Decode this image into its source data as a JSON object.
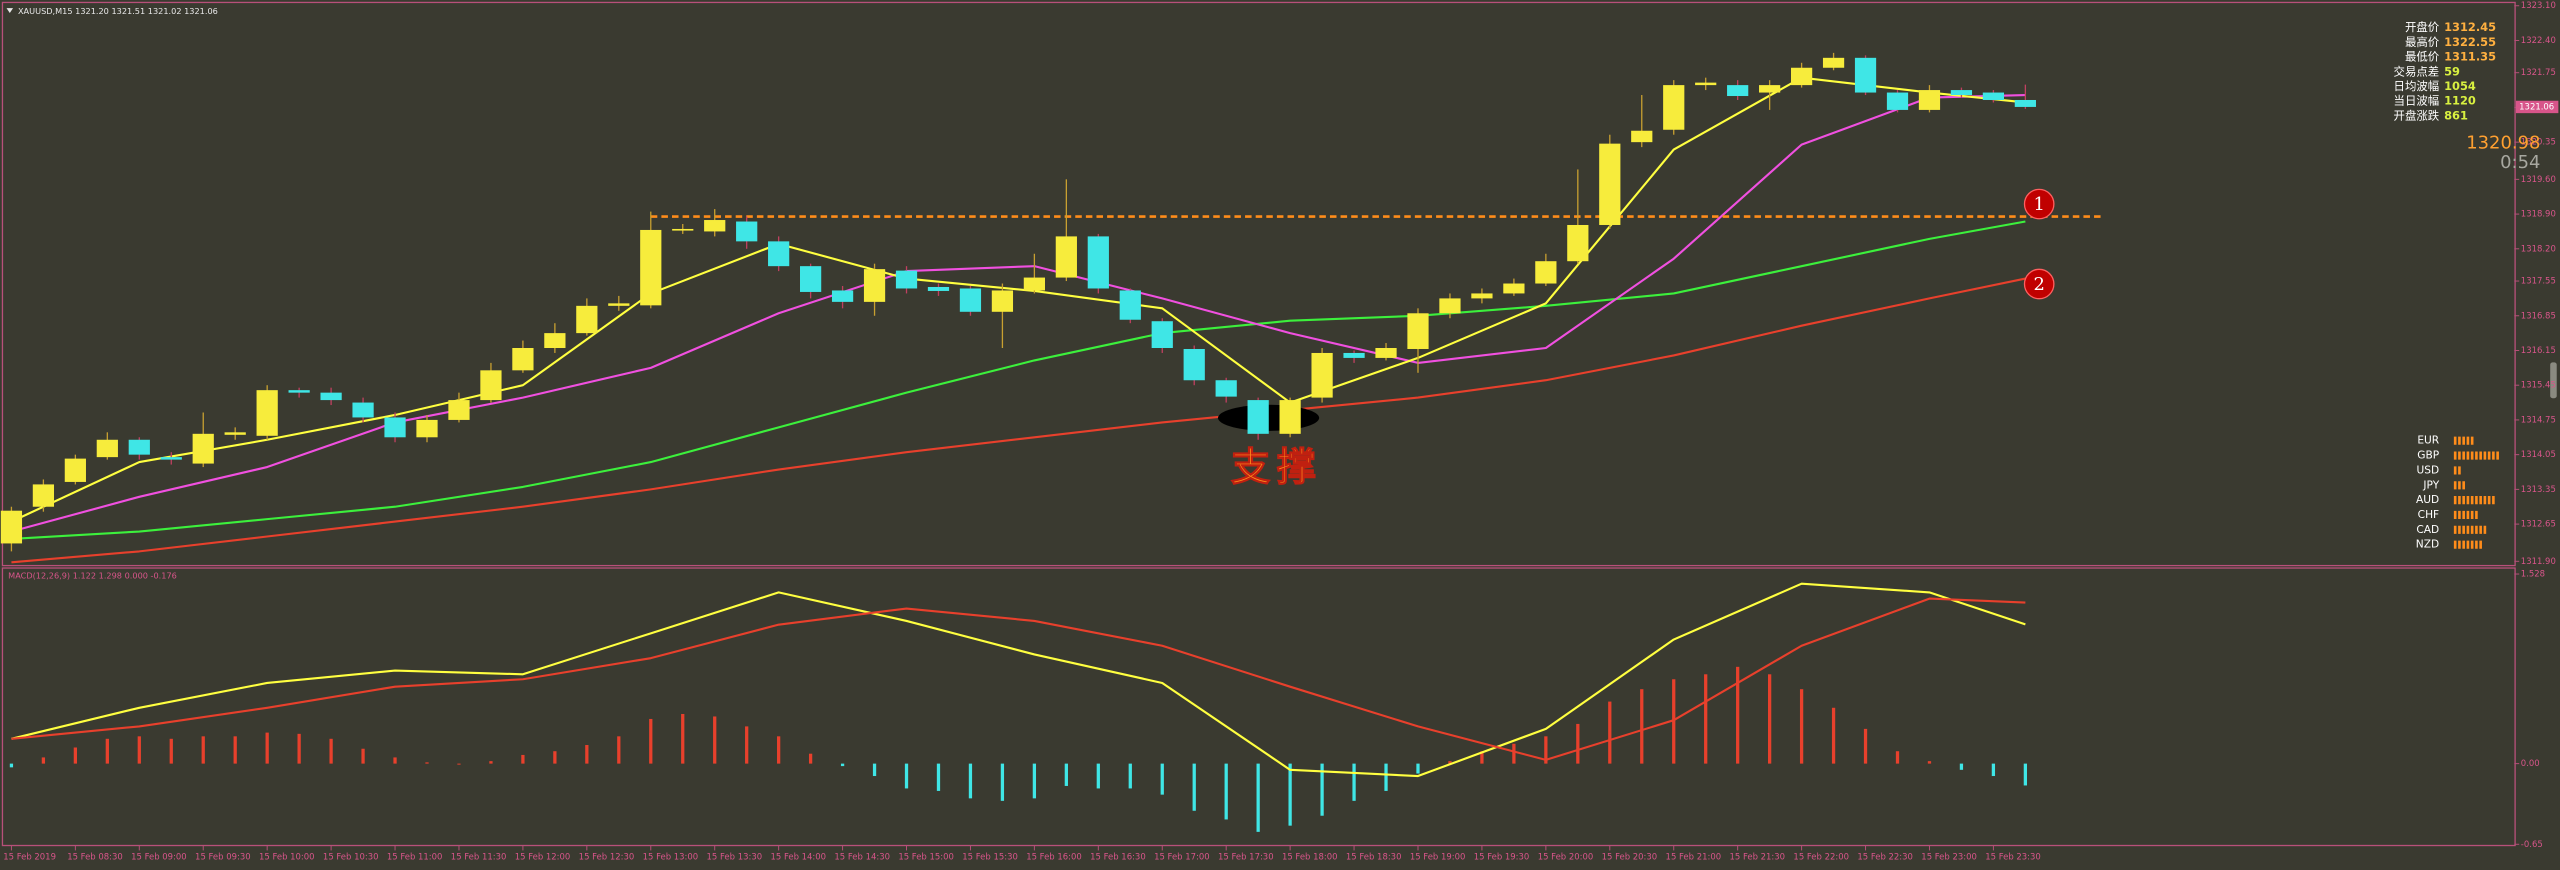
{
  "chart_data": [
    {
      "type": "candlestick",
      "title": "XAUUSD,M15  1321.20 1321.51 1321.02 1321.06",
      "categories": [
        "15 Feb 2019",
        null,
        "15 Feb 08:30",
        null,
        "15 Feb 09:00",
        null,
        "15 Feb 09:30",
        null,
        "15 Feb 10:00",
        null,
        "15 Feb 10:30",
        null,
        "15 Feb 11:00",
        null,
        "15 Feb 11:30",
        null,
        "15 Feb 12:00",
        null,
        "15 Feb 12:30",
        null,
        "15 Feb 13:00",
        null,
        "15 Feb 13:30",
        null,
        "15 Feb 14:00",
        null,
        "15 Feb 14:30",
        null,
        "15 Feb 15:00",
        null,
        "15 Feb 15:30",
        null,
        "15 Feb 16:00",
        null,
        "15 Feb 16:30",
        null,
        "15 Feb 17:00",
        null,
        "15 Feb 17:30",
        null,
        "15 Feb 18:00",
        null,
        "15 Feb 18:30",
        null,
        "15 Feb 19:00",
        null,
        "15 Feb 19:30",
        null,
        "15 Feb 20:00",
        null,
        "15 Feb 20:30",
        null,
        "15 Feb 21:00",
        null,
        "15 Feb 21:30",
        null,
        "15 Feb 22:00",
        null,
        "15 Feb 22:30",
        null,
        "15 Feb 23:00",
        null,
        "15 Feb 23:30",
        null
      ],
      "open": [
        1312.26,
        1313.0,
        1313.5,
        1314.0,
        1314.35,
        1314.0,
        1313.87,
        1314.45,
        1314.43,
        1315.35,
        1315.3,
        1315.1,
        1314.8,
        1314.4,
        1314.75,
        1315.15,
        1315.75,
        1316.2,
        1316.5,
        1317.05,
        1317.06,
        1318.58,
        1318.55,
        1318.75,
        1318.35,
        1317.85,
        1317.36,
        1317.13,
        1317.76,
        1317.43,
        1317.4,
        1316.93,
        1317.36,
        1317.62,
        1318.45,
        1317.36,
        1316.74,
        1316.18,
        1315.55,
        1315.15,
        1314.47,
        1315.2,
        1316.1,
        1316.0,
        1316.18,
        1316.9,
        1317.2,
        1317.3,
        1317.5,
        1317.95,
        1318.68,
        1320.35,
        1320.6,
        1321.5,
        1321.5,
        1321.35,
        1321.5,
        1321.85,
        1322.05,
        1321.35,
        1321.0,
        1321.4,
        1321.35,
        1321.2
      ],
      "high": [
        1313.0,
        1313.55,
        1314.05,
        1314.5,
        1314.4,
        1314.1,
        1314.9,
        1314.6,
        1315.45,
        1315.4,
        1315.4,
        1315.2,
        1314.9,
        1314.85,
        1315.3,
        1315.9,
        1316.35,
        1316.7,
        1317.2,
        1317.25,
        1318.95,
        1318.7,
        1319.0,
        1318.85,
        1318.45,
        1317.9,
        1317.45,
        1317.9,
        1317.85,
        1317.5,
        1317.45,
        1317.5,
        1318.1,
        1319.6,
        1318.5,
        1317.4,
        1316.8,
        1316.25,
        1315.6,
        1315.2,
        1315.2,
        1316.2,
        1316.15,
        1316.3,
        1317.0,
        1317.3,
        1317.4,
        1317.6,
        1318.1,
        1319.8,
        1320.5,
        1321.3,
        1321.6,
        1321.65,
        1321.6,
        1321.6,
        1321.95,
        1322.15,
        1322.1,
        1321.4,
        1321.5,
        1321.45,
        1321.4,
        1321.51
      ],
      "low": [
        1312.1,
        1312.9,
        1313.45,
        1313.95,
        1313.95,
        1313.85,
        1313.8,
        1314.35,
        1314.35,
        1315.2,
        1315.05,
        1314.7,
        1314.3,
        1314.3,
        1314.7,
        1315.1,
        1315.7,
        1316.1,
        1316.45,
        1316.95,
        1317.0,
        1318.5,
        1318.45,
        1318.2,
        1317.75,
        1317.2,
        1317.0,
        1316.85,
        1317.3,
        1317.25,
        1316.85,
        1316.2,
        1317.3,
        1317.55,
        1317.3,
        1316.7,
        1316.1,
        1315.45,
        1315.1,
        1314.35,
        1314.4,
        1315.1,
        1315.9,
        1315.95,
        1315.7,
        1316.8,
        1317.1,
        1317.25,
        1317.45,
        1317.9,
        1318.6,
        1320.25,
        1320.5,
        1321.4,
        1321.2,
        1321.0,
        1321.45,
        1321.8,
        1321.3,
        1320.95,
        1320.95,
        1321.25,
        1321.15,
        1321.02
      ],
      "close": [
        1312.92,
        1313.45,
        1313.97,
        1314.35,
        1314.05,
        1313.95,
        1314.47,
        1314.5,
        1315.35,
        1315.3,
        1315.15,
        1314.8,
        1314.4,
        1314.75,
        1315.15,
        1315.75,
        1316.2,
        1316.5,
        1317.05,
        1317.1,
        1318.58,
        1318.6,
        1318.78,
        1318.35,
        1317.85,
        1317.33,
        1317.13,
        1317.79,
        1317.4,
        1317.35,
        1316.93,
        1317.36,
        1317.62,
        1318.45,
        1317.4,
        1316.77,
        1316.2,
        1315.55,
        1315.22,
        1314.47,
        1315.15,
        1316.1,
        1316.0,
        1316.2,
        1316.9,
        1317.2,
        1317.3,
        1317.5,
        1317.95,
        1318.68,
        1320.32,
        1320.58,
        1321.5,
        1321.55,
        1321.28,
        1321.5,
        1321.85,
        1322.05,
        1321.35,
        1321.0,
        1321.4,
        1321.3,
        1321.2,
        1321.06
      ],
      "up_color": "#f7ec3c",
      "down_color": "#3fe6e6",
      "series": [
        {
          "color": "#e8402c",
          "x": [
            0,
            4,
            8,
            12,
            16,
            20,
            24,
            28,
            32,
            36,
            40,
            44,
            48,
            52,
            56,
            60,
            63
          ],
          "values": [
            1311.88,
            1312.1,
            1312.4,
            1312.7,
            1313.0,
            1313.35,
            1313.75,
            1314.1,
            1314.4,
            1314.7,
            1314.95,
            1315.2,
            1315.55,
            1316.05,
            1316.65,
            1317.2,
            1317.6
          ]
        },
        {
          "color": "#3cf03c",
          "x": [
            0,
            4,
            8,
            12,
            16,
            20,
            24,
            28,
            32,
            36,
            40,
            44,
            48,
            52,
            56,
            60,
            63
          ],
          "values": [
            1312.35,
            1312.5,
            1312.75,
            1313.0,
            1313.4,
            1313.9,
            1314.6,
            1315.3,
            1315.95,
            1316.5,
            1316.75,
            1316.85,
            1317.05,
            1317.3,
            1317.85,
            1318.4,
            1318.75
          ]
        },
        {
          "color": "#f050e0",
          "x": [
            0,
            4,
            8,
            12,
            16,
            20,
            24,
            28,
            32,
            36,
            40,
            44,
            48,
            52,
            56,
            60,
            63
          ],
          "values": [
            1312.5,
            1313.2,
            1313.8,
            1314.7,
            1315.2,
            1315.8,
            1316.9,
            1317.75,
            1317.85,
            1317.2,
            1316.5,
            1315.9,
            1316.2,
            1318.0,
            1320.3,
            1321.25,
            1321.3
          ]
        },
        {
          "color": "#ffff40",
          "x": [
            0,
            4,
            8,
            12,
            16,
            20,
            24,
            28,
            32,
            36,
            40,
            44,
            48,
            52,
            56,
            60,
            63
          ],
          "values": [
            1312.7,
            1313.9,
            1314.35,
            1314.85,
            1315.45,
            1317.3,
            1318.3,
            1317.6,
            1317.35,
            1317.0,
            1315.1,
            1316.0,
            1317.1,
            1320.2,
            1321.65,
            1321.35,
            1321.15
          ]
        }
      ],
      "ylim": [
        1311.83,
        1323.15
      ],
      "yticks": [
        {
          "value": 1323.1,
          "label": "1323.10"
        },
        {
          "value": 1322.4,
          "label": "1322.40"
        },
        1321.75,
        1321.05,
        1320.35,
        {
          "value": 1319.6,
          "label": "1319.60"
        },
        {
          "value": 1318.9,
          "label": "1318.90"
        },
        {
          "value": 1318.2,
          "label": "1318.20"
        },
        1317.55,
        1316.85,
        1316.15,
        1315.45,
        1314.75,
        1314.05,
        1313.35,
        1312.65,
        {
          "value": 1311.9,
          "label": "1311.90"
        }
      ],
      "current_price": 1321.06,
      "levels": [
        {
          "value": 1318.85,
          "color": "#ff8c1a"
        }
      ],
      "markers": [
        "1",
        "2"
      ],
      "annotation": "支撑"
    },
    {
      "type": "macd",
      "title": "MACD(12,26,9) 1.122 1.298 0.000 -0.176",
      "histogram": [
        -0.03,
        0.05,
        0.13,
        0.2,
        0.22,
        0.2,
        0.22,
        0.22,
        0.25,
        0.24,
        0.2,
        0.12,
        0.05,
        0.01,
        0.0,
        0.02,
        0.07,
        0.1,
        0.15,
        0.22,
        0.36,
        0.4,
        0.38,
        0.3,
        0.22,
        0.08,
        -0.02,
        -0.1,
        -0.2,
        -0.22,
        -0.28,
        -0.3,
        -0.28,
        -0.18,
        -0.2,
        -0.2,
        -0.25,
        -0.38,
        -0.45,
        -0.55,
        -0.5,
        -0.42,
        -0.3,
        -0.22,
        -0.08,
        0.02,
        0.1,
        0.16,
        0.22,
        0.32,
        0.5,
        0.6,
        0.68,
        0.72,
        0.78,
        0.72,
        0.6,
        0.45,
        0.28,
        0.1,
        0.02,
        -0.05,
        -0.1,
        -0.176
      ],
      "pos_color": "#e8402c",
      "neg_color": "#3fe6e6",
      "series": [
        {
          "color": "#ffff40",
          "x": [
            0,
            4,
            8,
            12,
            16,
            20,
            24,
            28,
            32,
            36,
            40,
            44,
            48,
            52,
            56,
            60,
            63
          ],
          "values": [
            0.2,
            0.45,
            0.65,
            0.75,
            0.72,
            1.05,
            1.38,
            1.15,
            0.88,
            0.65,
            -0.05,
            -0.1,
            0.28,
            1.0,
            1.45,
            1.38,
            1.122
          ]
        },
        {
          "color": "#e8402c",
          "x": [
            0,
            4,
            8,
            12,
            16,
            20,
            24,
            28,
            32,
            36,
            40,
            44,
            48,
            52,
            56,
            60,
            63
          ],
          "values": [
            0.2,
            0.3,
            0.45,
            0.62,
            0.68,
            0.85,
            1.12,
            1.25,
            1.15,
            0.95,
            0.62,
            0.3,
            0.03,
            0.35,
            0.95,
            1.33,
            1.298
          ]
        }
      ],
      "ylim": [
        -0.66,
        1.55
      ],
      "yticks": [
        1.528,
        {
          "value": 0,
          "label": "0.00"
        },
        -0.65
      ]
    },
    {
      "type": "strength",
      "categories": [
        "EUR",
        "GBP",
        "USD",
        "JPY",
        "AUD",
        "CHF",
        "CAD",
        "NZD"
      ],
      "values": [
        5,
        11,
        2,
        3,
        10,
        6,
        8,
        7
      ],
      "color": "#ff8c1a"
    }
  ],
  "info_panel": {
    "rows": [
      [
        "开盘价",
        "1312.45"
      ],
      [
        "最高价",
        "1322.55"
      ],
      [
        "最低价",
        "1311.35"
      ],
      [
        "交易点差",
        "59"
      ],
      [
        "日均波幅",
        "1054"
      ],
      [
        "当日波幅",
        "1120"
      ],
      [
        "开盘涨跌",
        "861"
      ]
    ],
    "price": "1320.98",
    "timer": "0:54"
  }
}
